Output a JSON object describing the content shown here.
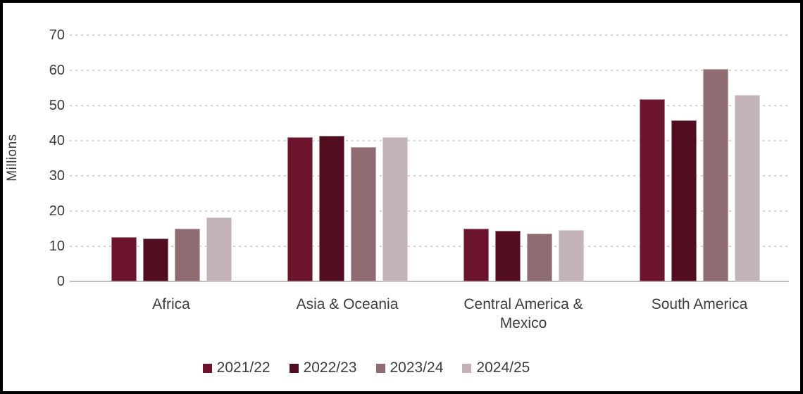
{
  "chart_data": {
    "type": "bar",
    "title": "",
    "ylabel": "Millions",
    "xlabel": "",
    "categories": [
      "Africa",
      "Asia & Oceania",
      "Central America &\nMexico",
      "South America"
    ],
    "series": [
      {
        "name": "2021/22",
        "color": "#6D142D",
        "values": [
          12.6,
          41.0,
          15.0,
          51.9
        ]
      },
      {
        "name": "2022/23",
        "color": "#520D20",
        "values": [
          12.3,
          41.5,
          14.4,
          45.9
        ]
      },
      {
        "name": "2023/24",
        "color": "#8E6C71",
        "values": [
          15.1,
          38.2,
          13.7,
          60.5
        ]
      },
      {
        "name": "2024/25",
        "color": "#C3B3B6",
        "values": [
          18.2,
          41.0,
          14.7,
          53.0
        ]
      }
    ],
    "ylim": [
      0,
      70
    ],
    "yticks": [
      0,
      10,
      20,
      30,
      40,
      50,
      60,
      70
    ],
    "grid": "horizontal-dotted",
    "gridline_color": "#D4D4D4",
    "axis_line_color": "#BFBFBF",
    "text_color": "#3C3C3C",
    "legend_position": "bottom"
  }
}
